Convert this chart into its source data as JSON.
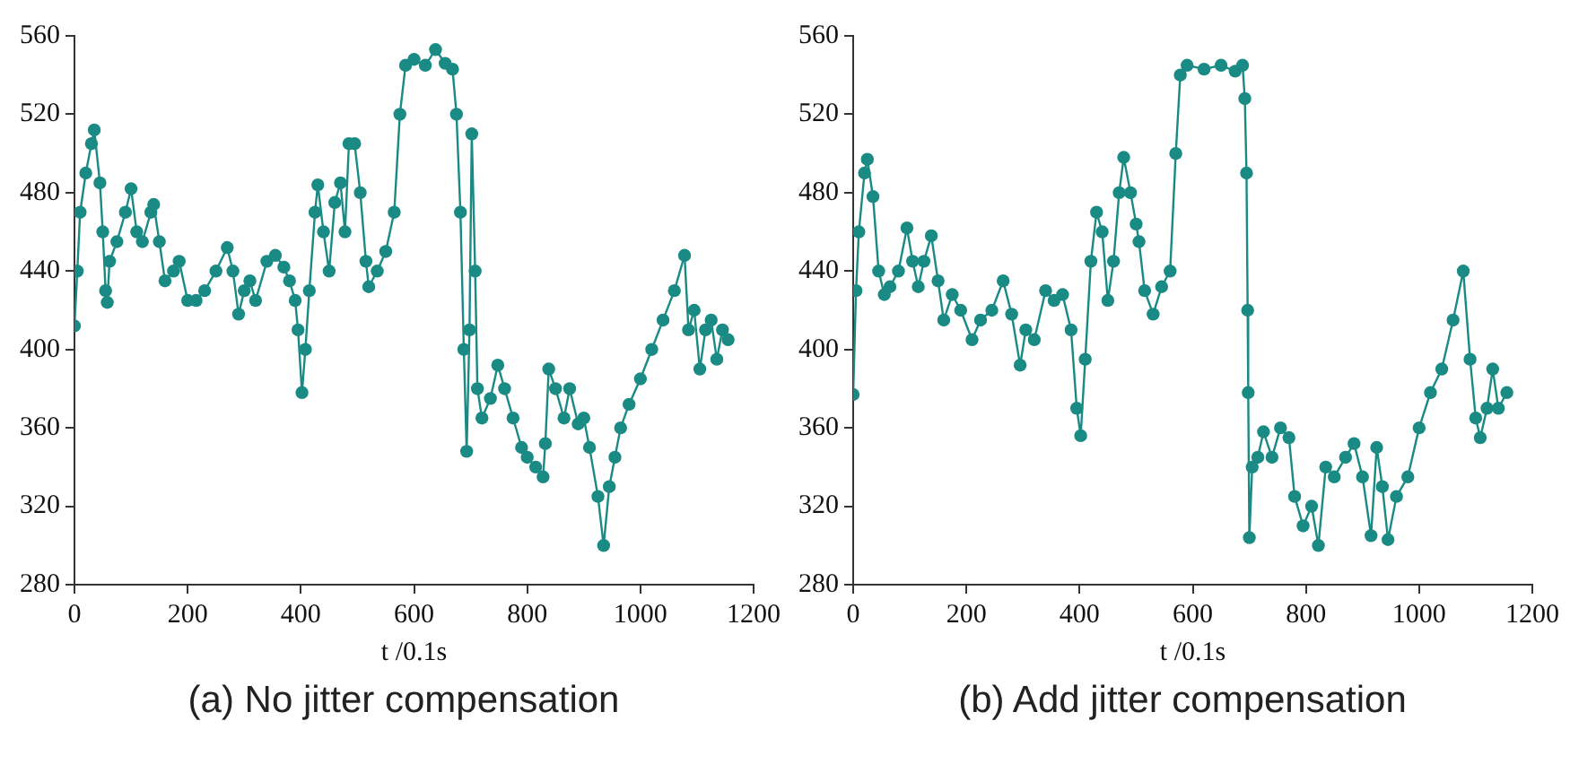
{
  "chart_data": [
    {
      "type": "line",
      "title": "(a) No jitter compensation",
      "xlabel": "t /0.1s",
      "xlim": [
        0,
        1200
      ],
      "xticks": [
        0,
        200,
        400,
        600,
        800,
        1000,
        1200
      ],
      "ylim": [
        280,
        560
      ],
      "yticks": [
        280,
        320,
        360,
        400,
        440,
        480,
        520,
        560
      ],
      "marker": "circle",
      "line_style": "solid",
      "series": [
        {
          "color": "#1a8a85",
          "x": [
            0,
            5,
            10,
            20,
            30,
            35,
            45,
            50,
            55,
            58,
            62,
            75,
            90,
            100,
            110,
            120,
            135,
            140,
            150,
            160,
            175,
            185,
            200,
            215,
            230,
            250,
            270,
            280,
            290,
            300,
            310,
            320,
            340,
            355,
            370,
            380,
            390,
            395,
            402,
            408,
            415,
            425,
            430,
            440,
            450,
            460,
            470,
            478,
            485,
            495,
            505,
            515,
            520,
            535,
            550,
            565,
            575,
            585,
            600,
            620,
            638,
            655,
            668,
            675,
            682,
            688,
            693,
            698,
            702,
            708,
            712,
            720,
            735,
            748,
            760,
            775,
            790,
            800,
            815,
            828,
            832,
            838,
            850,
            865,
            875,
            890,
            900,
            910,
            925,
            935,
            945,
            955,
            965,
            980,
            1000,
            1020,
            1040,
            1060,
            1078,
            1085,
            1095,
            1105,
            1115,
            1125,
            1135,
            1145,
            1155
          ],
          "values": [
            412,
            440,
            470,
            490,
            505,
            512,
            485,
            460,
            430,
            424,
            445,
            455,
            470,
            482,
            460,
            455,
            470,
            474,
            455,
            435,
            440,
            445,
            425,
            425,
            430,
            440,
            452,
            440,
            418,
            430,
            435,
            425,
            445,
            448,
            442,
            435,
            425,
            410,
            378,
            400,
            430,
            470,
            484,
            460,
            440,
            475,
            485,
            460,
            505,
            505,
            480,
            445,
            432,
            440,
            450,
            470,
            520,
            545,
            548,
            545,
            553,
            546,
            543,
            520,
            470,
            400,
            348,
            410,
            510,
            440,
            380,
            365,
            375,
            392,
            380,
            365,
            350,
            345,
            340,
            335,
            352,
            390,
            380,
            365,
            380,
            362,
            365,
            350,
            325,
            300,
            330,
            345,
            360,
            372,
            385,
            400,
            415,
            430,
            448,
            410,
            420,
            390,
            410,
            415,
            395,
            410,
            405
          ]
        }
      ]
    },
    {
      "type": "line",
      "title": "(b) Add jitter compensation",
      "xlabel": "t /0.1s",
      "xlim": [
        0,
        1200
      ],
      "xticks": [
        0,
        200,
        400,
        600,
        800,
        1000,
        1200
      ],
      "ylim": [
        280,
        560
      ],
      "yticks": [
        280,
        320,
        360,
        400,
        440,
        480,
        520,
        560
      ],
      "marker": "circle",
      "line_style": "solid",
      "series": [
        {
          "color": "#1a8a85",
          "x": [
            0,
            5,
            10,
            20,
            25,
            35,
            45,
            55,
            65,
            80,
            95,
            105,
            115,
            125,
            138,
            150,
            160,
            175,
            190,
            210,
            225,
            245,
            265,
            280,
            295,
            305,
            320,
            340,
            355,
            370,
            385,
            395,
            402,
            410,
            420,
            430,
            440,
            450,
            460,
            470,
            478,
            490,
            500,
            505,
            515,
            530,
            545,
            560,
            570,
            578,
            590,
            620,
            650,
            675,
            688,
            692,
            695,
            697,
            698,
            700,
            705,
            715,
            725,
            740,
            755,
            770,
            780,
            795,
            810,
            822,
            835,
            850,
            870,
            885,
            900,
            915,
            925,
            935,
            945,
            960,
            980,
            1000,
            1020,
            1040,
            1060,
            1078,
            1090,
            1100,
            1108,
            1120,
            1130,
            1140,
            1155
          ],
          "values": [
            377,
            430,
            460,
            490,
            497,
            478,
            440,
            428,
            432,
            440,
            462,
            445,
            432,
            445,
            458,
            435,
            415,
            428,
            420,
            405,
            415,
            420,
            435,
            418,
            392,
            410,
            405,
            430,
            425,
            428,
            410,
            370,
            356,
            395,
            445,
            470,
            460,
            425,
            445,
            480,
            498,
            480,
            464,
            455,
            430,
            418,
            432,
            440,
            500,
            540,
            545,
            543,
            545,
            542,
            545,
            528,
            490,
            420,
            378,
            304,
            340,
            345,
            358,
            345,
            360,
            355,
            325,
            310,
            320,
            300,
            340,
            335,
            345,
            352,
            335,
            305,
            350,
            330,
            303,
            325,
            335,
            360,
            378,
            390,
            415,
            440,
            395,
            365,
            355,
            370,
            390,
            370,
            378
          ]
        }
      ]
    }
  ]
}
